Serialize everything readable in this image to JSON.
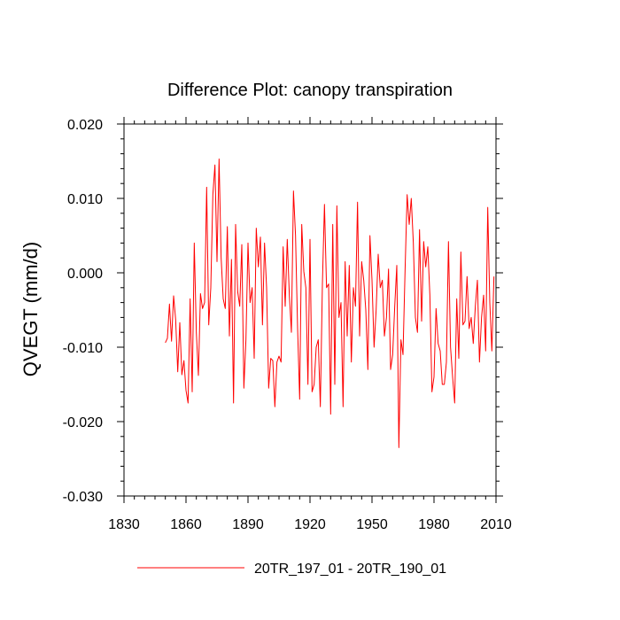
{
  "chart_data": {
    "type": "line",
    "title": "Difference Plot: canopy transpiration",
    "xlabel": "",
    "ylabel": "QVEGT  (mm/d)",
    "xlim": [
      1830,
      2010
    ],
    "ylim": [
      -0.03,
      0.02
    ],
    "x_ticks": [
      1830,
      1860,
      1890,
      1920,
      1950,
      1980,
      2010
    ],
    "x_tick_labels": [
      "1830",
      "1860",
      "1890",
      "1920",
      "1950",
      "1980",
      "2010"
    ],
    "y_ticks": [
      -0.03,
      -0.02,
      -0.01,
      0.0,
      0.01,
      0.02
    ],
    "y_tick_labels": [
      "-0.030",
      "-0.020",
      "-0.010",
      "0.000",
      "0.010",
      "0.020"
    ],
    "x_minor_step": 5,
    "y_minor_step": 0.002,
    "grid": false,
    "legend_position": "bottom-center",
    "series": [
      {
        "name": "20TR_197_01 - 20TR_190_01",
        "color": "#ff0000",
        "x_start": 1850,
        "x_step": 1,
        "values": [
          -0.0094,
          -0.0088,
          -0.0042,
          -0.0092,
          -0.0031,
          -0.0063,
          -0.0133,
          -0.0067,
          -0.0137,
          -0.0118,
          -0.0158,
          -0.0175,
          -0.0035,
          -0.016,
          0.004,
          -0.008,
          -0.0138,
          -0.0028,
          -0.0048,
          -0.004,
          0.0115,
          -0.007,
          -0.002,
          0.0105,
          0.0145,
          0.0015,
          0.0153,
          0.002,
          -0.0035,
          -0.0048,
          0.0062,
          -0.0085,
          0.0018,
          -0.0175,
          0.0065,
          -0.0025,
          -0.0045,
          0.0038,
          -0.0155,
          -0.009,
          0.004,
          -0.004,
          -0.002,
          -0.0115,
          0.006,
          0.0008,
          0.0048,
          -0.007,
          0.004,
          -0.002,
          -0.0155,
          -0.0115,
          -0.0118,
          -0.018,
          -0.012,
          -0.0112,
          -0.012,
          0.0035,
          -0.0045,
          0.0045,
          -0.003,
          -0.008,
          0.011,
          0.005,
          -0.0075,
          -0.017,
          0.0065,
          0.0002,
          -0.002,
          -0.015,
          0.0045,
          -0.016,
          -0.015,
          -0.01,
          -0.009,
          -0.018,
          -0.0015,
          0.0092,
          -0.002,
          -0.0015,
          -0.019,
          0.0065,
          -0.015,
          0.009,
          -0.006,
          -0.004,
          -0.018,
          0.0015,
          -0.0085,
          0.001,
          -0.012,
          -0.002,
          -0.0045,
          0.0095,
          -0.0085,
          0.0015,
          -0.001,
          -0.005,
          -0.013,
          0.005,
          -0.001,
          -0.01,
          -0.005,
          0.0025,
          -0.002,
          -0.001,
          -0.0085,
          -0.006,
          0.0005,
          -0.013,
          -0.011,
          -0.0045,
          0.001,
          -0.0235,
          -0.009,
          -0.011,
          0.0003,
          0.0105,
          0.0065,
          0.01,
          0.004,
          -0.006,
          -0.008,
          0.0058,
          -0.0065,
          0.0042,
          0.0008,
          0.0035,
          -0.003,
          -0.016,
          -0.014,
          -0.0048,
          -0.0095,
          -0.0105,
          -0.015,
          -0.015,
          -0.012,
          0.0042,
          -0.01,
          -0.014,
          -0.0175,
          -0.0035,
          -0.0115,
          0.0028,
          -0.007,
          -0.0065,
          -0.0005,
          -0.0075,
          -0.006,
          -0.0095,
          -0.0045,
          -0.001,
          -0.012,
          -0.006,
          -0.003,
          -0.0105,
          0.0088,
          -0.004,
          -0.0105,
          -0.0005
        ]
      }
    ]
  }
}
